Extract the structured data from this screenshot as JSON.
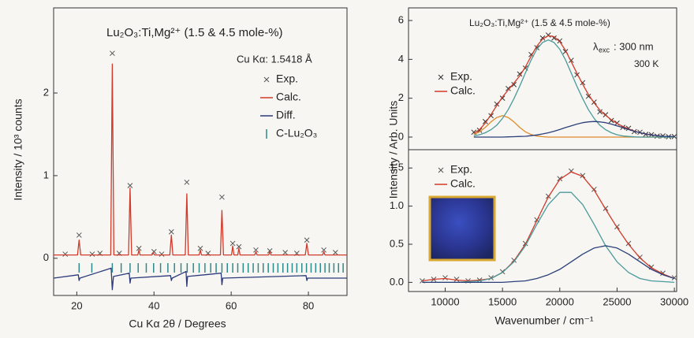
{
  "chart_data": [
    {
      "type": "line",
      "title": "Lu₂O₃:Ti,Mg²⁺ (1.5 & 4.5 mole-%)",
      "annotations": [
        "Cu Kα: 1.5418 Å"
      ],
      "xlabel": "Cu Kα 2θ / Degrees",
      "ylabel": "Intensity / 10³ counts",
      "xlim": [
        14,
        90
      ],
      "ylim": [
        -0.45,
        3.03
      ],
      "xticks": [
        20,
        40,
        60,
        80
      ],
      "yticks": [
        0,
        1,
        2
      ],
      "series": [
        {
          "name": "Exp.",
          "style": "markers",
          "color": "#555555",
          "x": [
            17,
            20.6,
            24,
            26,
            29.2,
            31,
            33.8,
            36.1,
            40,
            42,
            44.5,
            48.5,
            52,
            54,
            57.6,
            60.4,
            62.0,
            66.4,
            70,
            74,
            77,
            79.6,
            84,
            87
          ],
          "values": [
            0.05,
            0.28,
            0.05,
            0.06,
            2.48,
            0.06,
            0.88,
            0.12,
            0.08,
            0.05,
            0.32,
            0.92,
            0.12,
            0.06,
            0.74,
            0.18,
            0.14,
            0.1,
            0.09,
            0.07,
            0.06,
            0.22,
            0.1,
            0.07
          ]
        },
        {
          "name": "Calc.",
          "style": "line",
          "color": "#d03a2a",
          "x": [
            14,
            20.2,
            20.6,
            21.0,
            28.8,
            29.2,
            29.6,
            33.4,
            33.8,
            34.2,
            35.8,
            36.1,
            36.4,
            39.5,
            39.8,
            40.1,
            44.1,
            44.5,
            44.9,
            48.1,
            48.5,
            48.9,
            51.7,
            52.0,
            52.3,
            57.2,
            57.6,
            58.0,
            60.1,
            60.4,
            60.7,
            61.7,
            62.0,
            62.3,
            66.1,
            66.4,
            66.7,
            69.7,
            70.0,
            70.3,
            79.2,
            79.6,
            80.0,
            83.7,
            84.0,
            84.3,
            90
          ],
          "values": [
            0.04,
            0.04,
            0.22,
            0.04,
            0.04,
            2.35,
            0.04,
            0.04,
            0.85,
            0.04,
            0.04,
            0.1,
            0.04,
            0.04,
            0.07,
            0.04,
            0.04,
            0.28,
            0.04,
            0.04,
            0.78,
            0.04,
            0.04,
            0.1,
            0.04,
            0.04,
            0.58,
            0.04,
            0.04,
            0.15,
            0.04,
            0.04,
            0.12,
            0.04,
            0.04,
            0.08,
            0.04,
            0.04,
            0.08,
            0.04,
            0.04,
            0.18,
            0.04,
            0.04,
            0.08,
            0.04,
            0.04
          ]
        },
        {
          "name": "Diff.",
          "style": "line",
          "color": "#2b3a7a",
          "x": [
            14,
            20.4,
            20.6,
            20.8,
            28.9,
            29.2,
            29.5,
            33.6,
            33.8,
            34.0,
            44.3,
            44.5,
            44.7,
            48.3,
            48.5,
            48.7,
            57.4,
            57.6,
            57.8,
            79.4,
            79.6,
            79.8,
            90
          ],
          "values": [
            -0.24,
            -0.2,
            -0.27,
            -0.24,
            -0.12,
            -0.38,
            -0.22,
            -0.18,
            -0.3,
            -0.24,
            -0.21,
            -0.27,
            -0.24,
            -0.16,
            -0.34,
            -0.22,
            -0.18,
            -0.32,
            -0.24,
            -0.21,
            -0.27,
            -0.24,
            -0.24
          ]
        },
        {
          "name": "C-Lu₂O₃",
          "style": "ticks",
          "color": "#2e8a8a",
          "x": [
            20.6,
            23.9,
            29.2,
            31.5,
            33.8,
            35.9,
            38.0,
            39.9,
            41.7,
            43.6,
            45.3,
            47.0,
            48.6,
            50.2,
            51.7,
            53.2,
            54.7,
            56.1,
            57.6,
            59.0,
            60.4,
            61.7,
            63.1,
            64.4,
            65.7,
            67.0,
            68.3,
            69.6,
            70.9,
            72.1,
            73.4,
            74.6,
            75.8,
            77.0,
            78.3,
            79.5,
            80.7,
            81.9,
            83.1,
            84.3,
            85.4,
            86.6,
            87.8,
            89.0
          ]
        }
      ]
    },
    {
      "type": "line",
      "title": "Lu₂O₃:Ti,Mg²⁺ (1.5 & 4.5 mole-%)",
      "annotations": [
        "λ",
        "exc",
        ": 300 nm",
        "300 K"
      ],
      "ylabel": "Intensity / Arb. Units",
      "xlim": [
        6800,
        30200
      ],
      "ylim": [
        -0.65,
        6.65
      ],
      "yticks": [
        0,
        2,
        4,
        6
      ],
      "series": [
        {
          "name": "Exp.",
          "style": "markers",
          "color": "#333333",
          "x": [
            12500,
            13000,
            13500,
            14000,
            14500,
            15000,
            15500,
            16000,
            16500,
            17000,
            17500,
            18000,
            18500,
            19000,
            19500,
            20000,
            20500,
            21000,
            21500,
            22000,
            22500,
            23000,
            23500,
            24000,
            24500,
            25000,
            25500,
            26000,
            26500,
            27000,
            27500,
            28000,
            28500,
            29000,
            29500,
            30000
          ],
          "values": [
            0.25,
            0.35,
            0.8,
            1.1,
            1.7,
            2.0,
            2.5,
            2.7,
            3.25,
            3.55,
            4.25,
            4.6,
            5.1,
            5.25,
            5.1,
            4.95,
            4.4,
            3.95,
            3.2,
            2.8,
            2.1,
            1.8,
            1.3,
            1.15,
            0.85,
            0.72,
            0.5,
            0.45,
            0.28,
            0.25,
            0.14,
            0.12,
            0.05,
            0.06,
            0.02,
            0.03
          ]
        },
        {
          "name": "Calc.",
          "style": "line",
          "color": "#d03a2a",
          "x": [
            12500,
            13000,
            13500,
            14000,
            14500,
            15000,
            15500,
            16000,
            16500,
            17000,
            17500,
            18000,
            18500,
            19000,
            19500,
            20000,
            20500,
            21000,
            21500,
            22000,
            22500,
            23000,
            23500,
            24000,
            24500,
            25000,
            25500,
            26000,
            26500,
            27000,
            27500,
            28000,
            28500,
            29000,
            29500,
            30000
          ],
          "values": [
            0.19,
            0.39,
            0.72,
            1.16,
            1.62,
            2.06,
            2.43,
            2.78,
            3.14,
            3.61,
            4.17,
            4.68,
            5.05,
            5.22,
            5.17,
            4.91,
            4.46,
            3.88,
            3.28,
            2.72,
            2.19,
            1.76,
            1.39,
            1.12,
            0.89,
            0.7,
            0.55,
            0.42,
            0.31,
            0.22,
            0.16,
            0.11,
            0.07,
            0.04,
            0.03,
            0.02
          ]
        },
        {
          "style": "line",
          "color": "#e08a2a",
          "x": [
            12500,
            13000,
            13500,
            14000,
            14500,
            15000,
            15500,
            16000,
            16500,
            17000,
            17500,
            18000,
            18500,
            19000,
            19500,
            20000,
            20500,
            21000,
            21500,
            22000,
            22500,
            23000,
            23500,
            24000,
            24500,
            25000,
            25500,
            26000,
            26500,
            27000,
            27500,
            28000,
            28500,
            29000,
            29500,
            30000
          ],
          "values": [
            0.13,
            0.27,
            0.5,
            0.78,
            1.01,
            1.1,
            1.01,
            0.78,
            0.5,
            0.27,
            0.13,
            0.05,
            0.02,
            0,
            0,
            0,
            0,
            0,
            0,
            0,
            0,
            0,
            0,
            0,
            0,
            0,
            0,
            0,
            0,
            0,
            0,
            0,
            0,
            0,
            0,
            0
          ]
        },
        {
          "style": "line",
          "color": "#4a9a9a",
          "x": [
            12500,
            13000,
            13500,
            14000,
            14500,
            15000,
            15500,
            16000,
            16500,
            17000,
            17500,
            18000,
            18500,
            19000,
            19500,
            20000,
            20500,
            21000,
            21500,
            22000,
            22500,
            23000,
            23500,
            24000,
            24500,
            25000,
            25500,
            26000,
            26500,
            27000,
            27500,
            28000,
            28500,
            29000,
            29500,
            30000
          ],
          "values": [
            0.06,
            0.12,
            0.22,
            0.38,
            0.61,
            0.96,
            1.41,
            1.98,
            2.61,
            3.3,
            3.97,
            4.52,
            4.87,
            5.0,
            4.87,
            4.52,
            3.97,
            3.3,
            2.61,
            1.98,
            1.41,
            0.96,
            0.61,
            0.38,
            0.22,
            0.12,
            0.06,
            0.03,
            0.01,
            0,
            0,
            0,
            0,
            0,
            0,
            0
          ]
        },
        {
          "style": "line",
          "color": "#2b3f7a",
          "x": [
            12500,
            13000,
            13500,
            14000,
            14500,
            15000,
            15500,
            16000,
            16500,
            17000,
            17500,
            18000,
            18500,
            19000,
            19500,
            20000,
            20500,
            21000,
            21500,
            22000,
            22500,
            23000,
            23500,
            24000,
            24500,
            25000,
            25500,
            26000,
            26500,
            27000,
            27500,
            28000,
            28500,
            29000,
            29500,
            30000
          ],
          "values": [
            0,
            0,
            0,
            0,
            0,
            0,
            0.01,
            0.02,
            0.03,
            0.04,
            0.07,
            0.11,
            0.16,
            0.22,
            0.3,
            0.39,
            0.49,
            0.58,
            0.67,
            0.74,
            0.78,
            0.8,
            0.78,
            0.74,
            0.67,
            0.58,
            0.49,
            0.39,
            0.3,
            0.22,
            0.16,
            0.11,
            0.07,
            0.04,
            0.03,
            0.02
          ]
        }
      ]
    },
    {
      "type": "line",
      "xlabel": "Wavenumber / cm⁻¹",
      "xlim": [
        6800,
        30200
      ],
      "ylim": [
        -0.12,
        1.74
      ],
      "xticks": [
        10000,
        15000,
        20000,
        25000,
        30000
      ],
      "yticks": [
        {
          "value": 0,
          "label": "0.0"
        },
        {
          "value": 0.5,
          "label": "0.5"
        },
        {
          "value": 1,
          "label": "1.0"
        },
        {
          "value": 1.5,
          "label": "1.5"
        }
      ],
      "series": [
        {
          "name": "Exp.",
          "style": "markers",
          "color": "#555555",
          "x": [
            8000,
            9000,
            10000,
            11000,
            12000,
            13000,
            14000,
            15000,
            16000,
            17000,
            18000,
            19000,
            20000,
            21000,
            22000,
            23000,
            24000,
            25000,
            26000,
            27000,
            28000,
            29000,
            30000
          ],
          "values": [
            0.02,
            0.04,
            0.06,
            0.04,
            0.02,
            0.03,
            0.06,
            0.14,
            0.29,
            0.51,
            0.82,
            1.13,
            1.36,
            1.46,
            1.4,
            1.22,
            0.97,
            0.73,
            0.51,
            0.33,
            0.2,
            0.12,
            0.06
          ]
        },
        {
          "name": "Calc.",
          "style": "line",
          "color": "#d03a2a",
          "x": [
            8000,
            9000,
            10000,
            11000,
            12000,
            13000,
            14000,
            15000,
            16000,
            17000,
            18000,
            19000,
            20000,
            21000,
            22000,
            23000,
            24000,
            25000,
            26000,
            27000,
            28000,
            29000,
            30000
          ],
          "values": [
            0.02,
            0.04,
            0.05,
            0.03,
            0.02,
            0.03,
            0.05,
            0.13,
            0.28,
            0.5,
            0.81,
            1.12,
            1.35,
            1.45,
            1.39,
            1.21,
            0.96,
            0.72,
            0.5,
            0.32,
            0.19,
            0.11,
            0.05
          ]
        },
        {
          "style": "line",
          "color": "#4a9a9a",
          "x": [
            8000,
            9000,
            10000,
            11000,
            12000,
            13000,
            14000,
            15000,
            16000,
            17000,
            18000,
            19000,
            20000,
            21000,
            22000,
            23000,
            24000,
            25000,
            26000,
            27000,
            28000,
            29000,
            30000
          ],
          "values": [
            0,
            0,
            0,
            0,
            0.01,
            0.02,
            0.05,
            0.13,
            0.27,
            0.48,
            0.76,
            1.02,
            1.18,
            1.18,
            1.02,
            0.76,
            0.48,
            0.27,
            0.13,
            0.05,
            0.02,
            0.01,
            0
          ]
        },
        {
          "style": "line",
          "color": "#2b3f7a",
          "x": [
            8000,
            9000,
            10000,
            11000,
            12000,
            13000,
            14000,
            15000,
            16000,
            17000,
            18000,
            19000,
            20000,
            21000,
            22000,
            23000,
            24000,
            25000,
            26000,
            27000,
            28000,
            29000,
            30000
          ],
          "values": [
            0,
            0,
            0,
            0,
            0,
            0,
            0,
            0,
            0.01,
            0.02,
            0.05,
            0.1,
            0.17,
            0.27,
            0.37,
            0.45,
            0.48,
            0.45,
            0.37,
            0.27,
            0.17,
            0.1,
            0.05
          ]
        }
      ]
    }
  ]
}
